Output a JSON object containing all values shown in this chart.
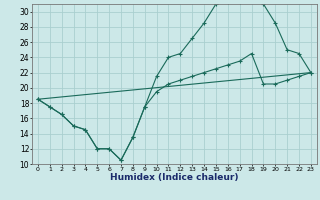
{
  "xlabel": "Humidex (Indice chaleur)",
  "bg_color": "#cce8e8",
  "grid_color": "#aacfcf",
  "line_color": "#1a6a5a",
  "xlim": [
    -0.5,
    23.5
  ],
  "ylim": [
    10,
    31
  ],
  "xtick_labels": [
    "0",
    "1",
    "2",
    "3",
    "4",
    "5",
    "6",
    "7",
    "8",
    "9",
    "10",
    "11",
    "12",
    "13",
    "14",
    "15",
    "16",
    "17",
    "18",
    "19",
    "20",
    "21",
    "22",
    "23"
  ],
  "yticks": [
    10,
    12,
    14,
    16,
    18,
    20,
    22,
    24,
    26,
    28,
    30
  ],
  "line1_x": [
    0,
    1,
    2,
    3,
    4,
    5,
    6,
    7,
    8,
    9,
    10,
    11,
    12,
    13,
    14,
    15,
    16,
    17,
    18,
    19,
    20,
    21,
    22,
    23
  ],
  "line1_y": [
    18.5,
    17.5,
    16.5,
    15.0,
    14.5,
    12.0,
    12.0,
    10.5,
    13.5,
    17.5,
    21.5,
    24.0,
    24.5,
    26.5,
    28.5,
    31.0,
    31.2,
    31.2,
    31.5,
    31.0,
    28.5,
    25.0,
    24.5,
    22.0
  ],
  "line2_x": [
    0,
    1,
    2,
    3,
    4,
    5,
    6,
    7,
    8,
    9,
    10,
    11,
    12,
    13,
    14,
    15,
    16,
    17,
    18,
    19,
    20,
    21,
    22,
    23
  ],
  "line2_y": [
    18.5,
    17.5,
    16.5,
    15.0,
    14.5,
    12.0,
    12.0,
    10.5,
    13.5,
    17.5,
    19.5,
    20.5,
    21.0,
    21.5,
    22.0,
    22.5,
    23.0,
    23.5,
    24.5,
    20.5,
    20.5,
    21.0,
    21.5,
    22.0
  ],
  "line3_x": [
    0,
    23
  ],
  "line3_y": [
    18.5,
    22.0
  ]
}
